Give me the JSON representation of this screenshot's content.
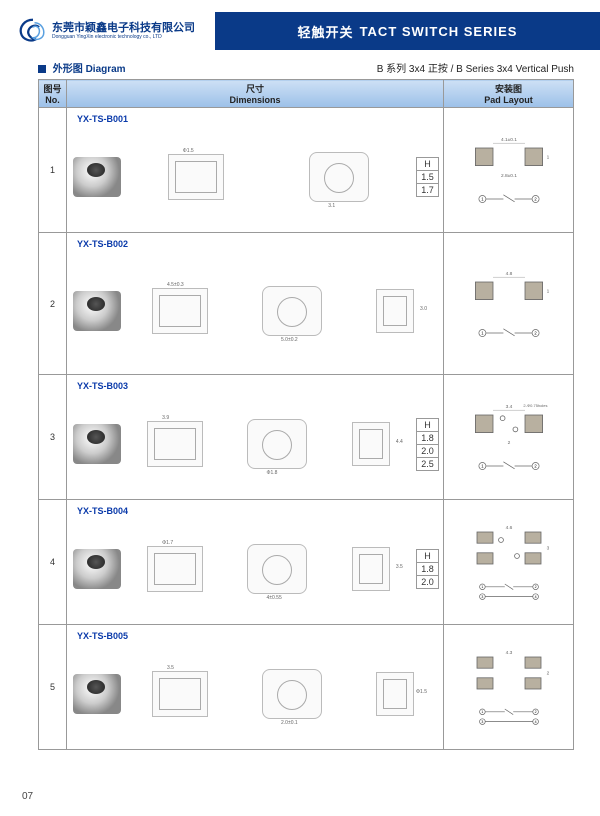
{
  "header": {
    "company_cn": "东莞市颖鑫电子科技有限公司",
    "company_en": "Dongguan YingXin electronic technology co., LTD",
    "title_cn": "轻触开关",
    "title_en": "TACT SWITCH SERIES"
  },
  "section": {
    "diagram_label_cn": "外形图",
    "diagram_label_en": "Diagram",
    "series_label": "B 系列 3x4 正按 / B Series 3x4 Vertical Push"
  },
  "columns": {
    "no_cn": "图号",
    "no_en": "No.",
    "dim_cn": "尺寸",
    "dim_en": "Dimensions",
    "pad_cn": "安装图",
    "pad_en": "Pad Layout"
  },
  "colors": {
    "brand_blue": "#0a3a88",
    "header_grad_top": "#cde0f5",
    "header_grad_bot": "#9cc0e8",
    "pad_fill": "#b8b0a0"
  },
  "rows": [
    {
      "no": "1",
      "part": "YX-TS-B001",
      "h_values": [
        "H",
        "1.5",
        "1.7"
      ],
      "dims": [
        "Φ1.5",
        "3.1",
        "1.4",
        "H"
      ],
      "pad": {
        "w": "4.1±0.1",
        "h": "2.8±0.1",
        "t": "1.8",
        "schematic_pins": [
          "1",
          "2"
        ]
      }
    },
    {
      "no": "2",
      "part": "YX-TS-B002",
      "h_values": [],
      "dims": [
        "4.5±0.3",
        "5.0±0.2",
        "3.0",
        "0.55±0.1",
        "1.75±0.1",
        "2±0.2",
        "1.75±0.1",
        "3.4±0.2",
        "1.5±0.1"
      ],
      "pad": {
        "w": "4.8",
        "t": "1.8",
        "schematic_pins": [
          "1",
          "2"
        ]
      }
    },
    {
      "no": "3",
      "part": "YX-TS-B003",
      "h_values": [
        "H",
        "1.8",
        "2.0",
        "2.5"
      ],
      "dims": [
        "3.9",
        "Φ1.8",
        "4.4",
        "2.85",
        "H"
      ],
      "pad": {
        "w": "3.4",
        "h": "2",
        "holes": "2-Φ0.75holes",
        "schematic_pins": [
          "1",
          "2"
        ]
      }
    },
    {
      "no": "4",
      "part": "YX-TS-B004",
      "h_values": [
        "H",
        "1.8",
        "2.0"
      ],
      "dims": [
        "Φ1.7",
        "4±0.55",
        "3.5",
        "4.7(0.1)",
        "0.5",
        "2.4(0.8)",
        "H"
      ],
      "pad": {
        "w": "4.6",
        "h": "3.3",
        "holes": "2-Φ0.7",
        "schematic_pins": [
          "1",
          "2",
          "3",
          "4"
        ]
      }
    },
    {
      "no": "5",
      "part": "YX-TS-B005",
      "h_values": [],
      "dims": [
        "3.5",
        "2.0±0.1",
        "Φ1.5",
        "1.5",
        "1.95",
        "1.3±0.1",
        "2.8"
      ],
      "pad": {
        "w": "4.3",
        "h": "2.5",
        "t": "0.8",
        "schematic_pins": [
          "1",
          "2",
          "3",
          "4"
        ]
      }
    }
  ],
  "page_number": "07"
}
